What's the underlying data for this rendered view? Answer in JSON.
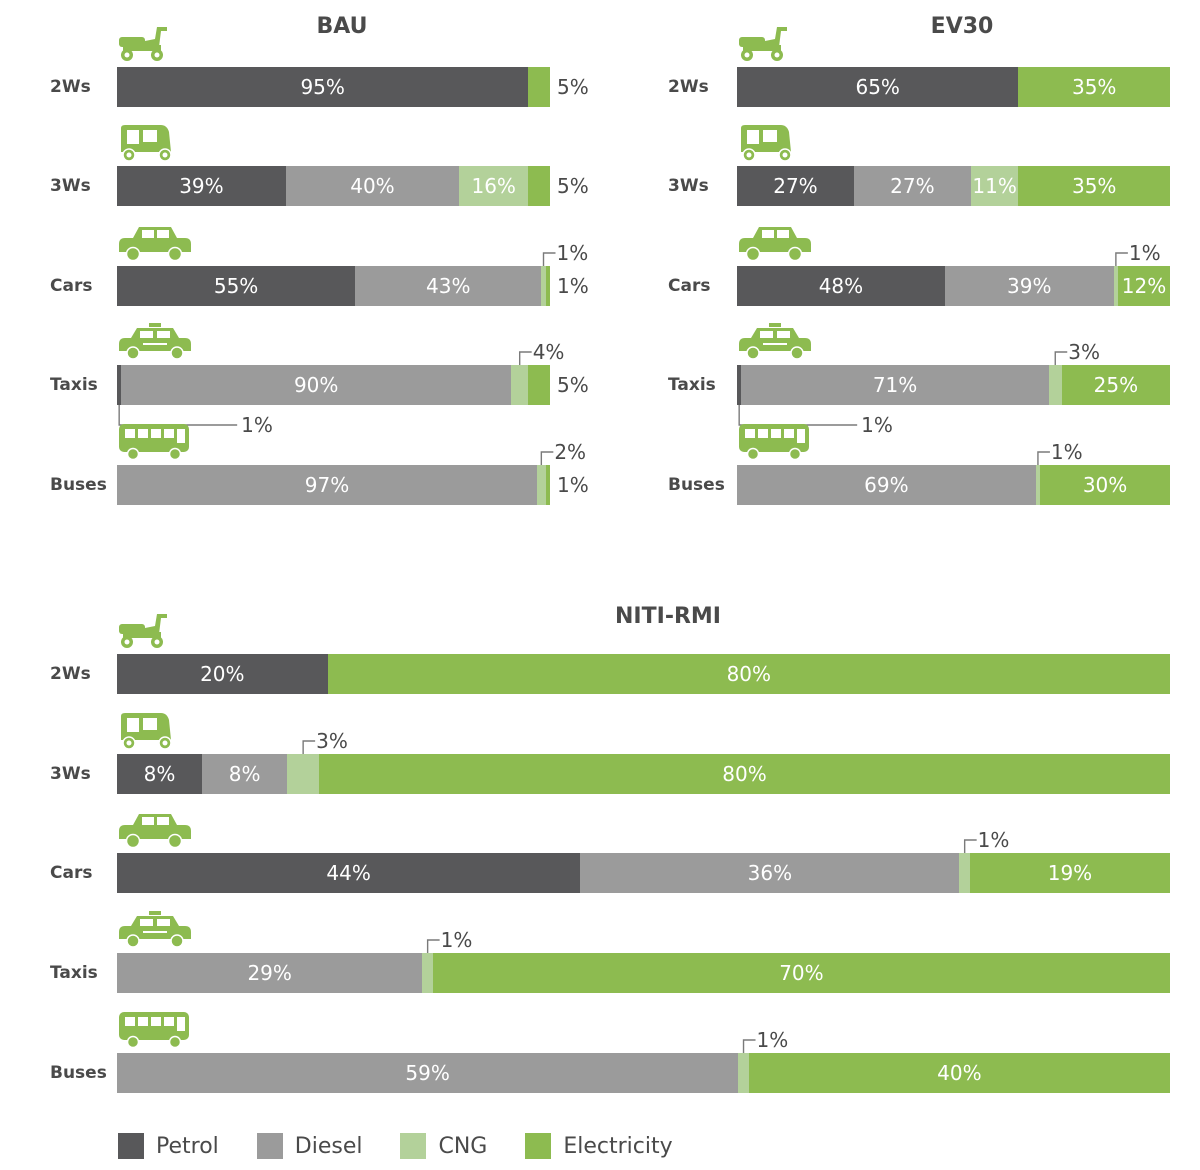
{
  "colors": {
    "Petrol": "#58585a",
    "Diesel": "#9b9b9b",
    "CNG": "#b3d19a",
    "Electricity": "#8dbb50",
    "icon": "#8dbb50",
    "text": "#4a4a4a",
    "leader": "#7a7a7a"
  },
  "legend": [
    {
      "name": "Petrol",
      "color": "#58585a"
    },
    {
      "name": "Diesel",
      "color": "#9b9b9b"
    },
    {
      "name": "CNG",
      "color": "#b3d19a"
    },
    {
      "name": "Electricity",
      "color": "#8dbb50"
    }
  ],
  "chart_data": [
    {
      "type": "bar",
      "stacked": true,
      "orientation": "horizontal",
      "title": "BAU",
      "categories": [
        "2Ws",
        "3Ws",
        "Cars",
        "Taxis",
        "Buses"
      ],
      "category_icons": [
        "scooter-icon",
        "auto-rickshaw-icon",
        "car-icon",
        "taxi-icon",
        "bus-icon"
      ],
      "series": [
        {
          "name": "Petrol",
          "values": [
            95,
            39,
            55,
            1,
            0
          ]
        },
        {
          "name": "Diesel",
          "values": [
            0,
            40,
            43,
            90,
            97
          ]
        },
        {
          "name": "CNG",
          "values": [
            0,
            16,
            1,
            4,
            2
          ]
        },
        {
          "name": "Electricity",
          "values": [
            5,
            5,
            1,
            5,
            1
          ]
        }
      ],
      "unit": "%"
    },
    {
      "type": "bar",
      "stacked": true,
      "orientation": "horizontal",
      "title": "EV30",
      "categories": [
        "2Ws",
        "3Ws",
        "Cars",
        "Taxis",
        "Buses"
      ],
      "category_icons": [
        "scooter-icon",
        "auto-rickshaw-icon",
        "car-icon",
        "taxi-icon",
        "bus-icon"
      ],
      "series": [
        {
          "name": "Petrol",
          "values": [
            65,
            27,
            48,
            1,
            0
          ]
        },
        {
          "name": "Diesel",
          "values": [
            0,
            27,
            39,
            71,
            69
          ]
        },
        {
          "name": "CNG",
          "values": [
            0,
            11,
            1,
            3,
            1
          ]
        },
        {
          "name": "Electricity",
          "values": [
            35,
            35,
            12,
            25,
            30
          ]
        }
      ],
      "unit": "%"
    },
    {
      "type": "bar",
      "stacked": true,
      "orientation": "horizontal",
      "title": "NITI-RMI",
      "categories": [
        "2Ws",
        "3Ws",
        "Cars",
        "Taxis",
        "Buses"
      ],
      "category_icons": [
        "scooter-icon",
        "auto-rickshaw-icon",
        "car-icon",
        "taxi-icon",
        "bus-icon"
      ],
      "series": [
        {
          "name": "Petrol",
          "values": [
            20,
            8,
            44,
            0,
            0
          ]
        },
        {
          "name": "Diesel",
          "values": [
            0,
            8,
            36,
            29,
            59
          ]
        },
        {
          "name": "CNG",
          "values": [
            0,
            3,
            1,
            1,
            1
          ]
        },
        {
          "name": "Electricity",
          "values": [
            80,
            80,
            19,
            70,
            40
          ]
        }
      ],
      "unit": "%"
    }
  ]
}
